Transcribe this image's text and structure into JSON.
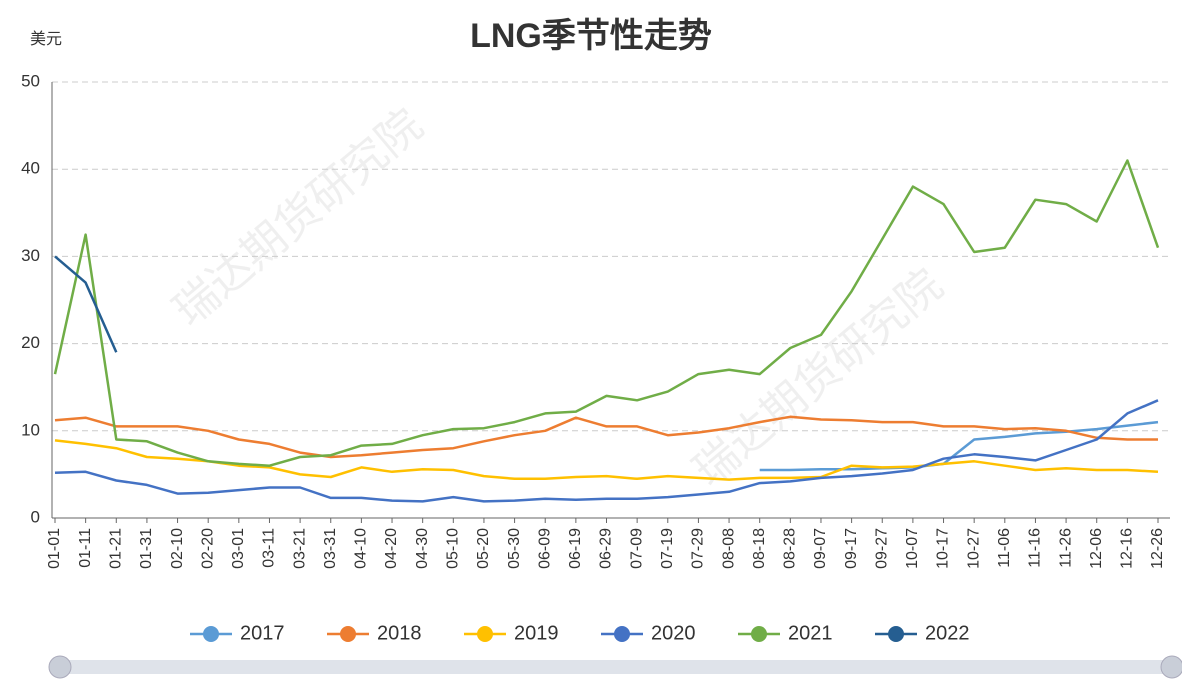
{
  "chart_data": {
    "type": "line",
    "title": "LNG季节性走势",
    "y_label": "美元",
    "watermark": "瑞达期货研究院",
    "categories": [
      "01-01",
      "01-11",
      "01-21",
      "01-31",
      "02-10",
      "02-20",
      "03-01",
      "03-11",
      "03-21",
      "03-31",
      "04-10",
      "04-20",
      "04-30",
      "05-10",
      "05-20",
      "05-30",
      "06-09",
      "06-19",
      "06-29",
      "07-09",
      "07-19",
      "07-29",
      "08-08",
      "08-18",
      "08-28",
      "09-07",
      "09-17",
      "09-27",
      "10-07",
      "10-17",
      "10-27",
      "11-06",
      "11-16",
      "11-26",
      "12-06",
      "12-16",
      "12-26"
    ],
    "series": [
      {
        "name": "2017",
        "color": "#5b9bd5",
        "values": [
          null,
          null,
          null,
          null,
          null,
          null,
          null,
          null,
          null,
          null,
          null,
          null,
          null,
          null,
          null,
          null,
          null,
          null,
          null,
          null,
          null,
          null,
          null,
          5.5,
          5.5,
          5.6,
          5.6,
          5.7,
          5.8,
          6.2,
          9.0,
          9.3,
          9.7,
          9.9,
          10.2,
          10.6,
          11.0
        ]
      },
      {
        "name": "2018",
        "color": "#ed7d31",
        "values": [
          11.2,
          11.5,
          10.5,
          10.5,
          10.5,
          10.0,
          9.0,
          8.5,
          7.5,
          7.0,
          7.2,
          7.5,
          7.8,
          8.0,
          8.8,
          9.5,
          10.0,
          11.5,
          10.5,
          10.5,
          9.5,
          9.8,
          10.3,
          11.0,
          11.6,
          11.3,
          11.2,
          11.0,
          11.0,
          10.5,
          10.5,
          10.2,
          10.3,
          10.0,
          9.2,
          9.0,
          9.0
        ]
      },
      {
        "name": "2019",
        "color": "#ffc000",
        "values": [
          8.9,
          8.5,
          8.0,
          7.0,
          6.8,
          6.5,
          6.0,
          5.8,
          5.0,
          4.7,
          5.8,
          5.3,
          5.6,
          5.5,
          4.8,
          4.5,
          4.5,
          4.7,
          4.8,
          4.5,
          4.8,
          4.6,
          4.4,
          4.6,
          4.6,
          4.7,
          6.0,
          5.8,
          5.9,
          6.2,
          6.5,
          6.0,
          5.5,
          5.7,
          5.5,
          5.5,
          5.3
        ]
      },
      {
        "name": "2020",
        "color": "#4472c4",
        "values": [
          5.2,
          5.3,
          4.3,
          3.8,
          2.8,
          2.9,
          3.2,
          3.5,
          3.5,
          2.3,
          2.3,
          2.0,
          1.9,
          2.4,
          1.9,
          2.0,
          2.2,
          2.1,
          2.2,
          2.2,
          2.4,
          2.7,
          3.0,
          4.0,
          4.2,
          4.6,
          4.8,
          5.1,
          5.5,
          6.8,
          7.3,
          7.0,
          6.6,
          7.8,
          9.0,
          12.0,
          13.5
        ]
      },
      {
        "name": "2021",
        "color": "#70ad47",
        "values": [
          16.5,
          32.5,
          9.0,
          8.8,
          7.5,
          6.5,
          6.2,
          6.0,
          7.0,
          7.2,
          8.3,
          8.5,
          9.5,
          10.2,
          10.3,
          11.0,
          12.0,
          12.2,
          14.0,
          13.5,
          14.5,
          16.5,
          17.0,
          16.5,
          19.5,
          21.0,
          26.0,
          32.0,
          38.0,
          36.0,
          30.5,
          31.0,
          36.5,
          36.0,
          34.0,
          41.0,
          31.0
        ]
      },
      {
        "name": "2022",
        "color": "#255e91",
        "values": [
          30.0,
          27.0,
          19.0,
          null,
          null,
          null,
          null,
          null,
          null,
          null,
          null,
          null,
          null,
          null,
          null,
          null,
          null,
          null,
          null,
          null,
          null,
          null,
          null,
          null,
          null,
          null,
          null,
          null,
          null,
          null,
          null,
          null,
          null,
          null,
          null,
          null,
          null
        ]
      }
    ],
    "ylim": [
      0,
      50
    ],
    "yticks": [
      0,
      10,
      20,
      30,
      40,
      50
    ],
    "grid": true,
    "legend": "bottom"
  }
}
